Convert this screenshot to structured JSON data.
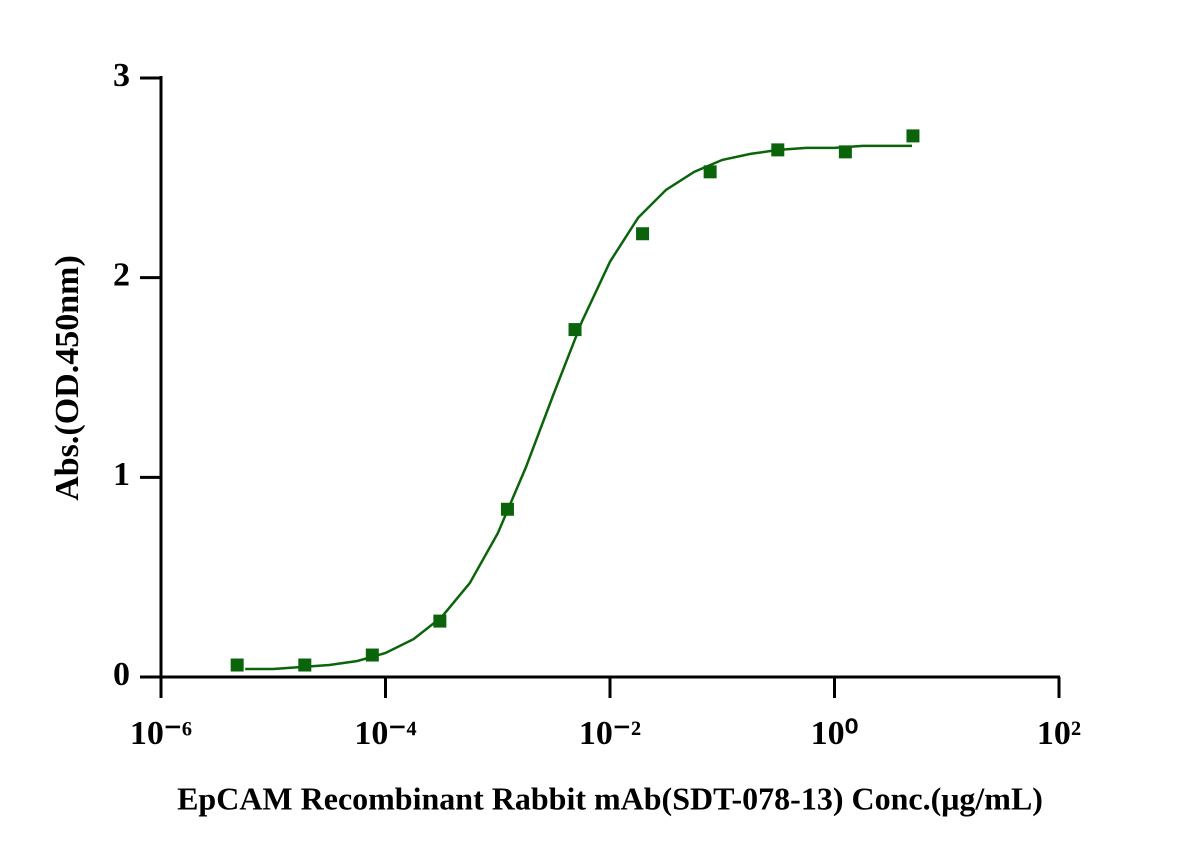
{
  "chart_data": {
    "type": "scatter",
    "x_label": "EpCAM Recombinant Rabbit mAb(SDT-078-13) Conc.(μg/mL)",
    "y_label": "Abs.(OD.450nm)",
    "x": [
      4.77e-06,
      1.91e-05,
      7.63e-05,
      0.000305,
      0.00122,
      0.00488,
      0.0195,
      0.078,
      0.3125,
      1.25,
      5
    ],
    "values": [
      0.06,
      0.06,
      0.11,
      0.28,
      0.84,
      1.74,
      2.22,
      2.53,
      2.64,
      2.63,
      2.71
    ],
    "color": "#0b640b",
    "curve": {
      "x": [
        5.62e-06,
        1e-05,
        1.78e-05,
        3.16e-05,
        5.62e-05,
        0.0001,
        0.000178,
        0.000316,
        0.000562,
        0.001,
        0.00178,
        0.00316,
        0.00562,
        0.01,
        0.0178,
        0.0316,
        0.0562,
        0.1,
        0.178,
        0.316,
        0.562,
        1,
        1.78,
        3.16,
        4.9
      ],
      "values": [
        0.04,
        0.04,
        0.05,
        0.06,
        0.08,
        0.12,
        0.19,
        0.3,
        0.47,
        0.72,
        1.05,
        1.42,
        1.78,
        2.08,
        2.3,
        2.44,
        2.53,
        2.59,
        2.62,
        2.64,
        2.65,
        2.65,
        2.66,
        2.66,
        2.66
      ]
    },
    "xlog": true,
    "xlim": [
      1e-06,
      100
    ],
    "xticks": [
      {
        "value": 1e-06,
        "label": "10⁻⁶"
      },
      {
        "value": 0.0001,
        "label": "10⁻⁴"
      },
      {
        "value": 0.01,
        "label": "10⁻²"
      },
      {
        "value": 1,
        "label": "10⁰"
      },
      {
        "value": 100,
        "label": "10²"
      }
    ],
    "ylim": [
      0,
      3
    ],
    "yticks": [
      0,
      1,
      2,
      3
    ]
  }
}
